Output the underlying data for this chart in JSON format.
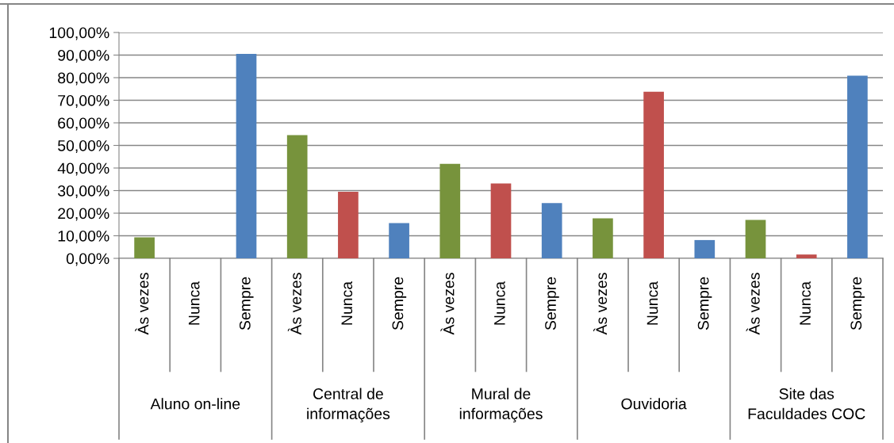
{
  "chart_data": {
    "type": "bar",
    "categories": [
      "Às vezes",
      "Nunca",
      "Sempre",
      "Às vezes",
      "Nunca",
      "Sempre",
      "Às vezes",
      "Nunca",
      "Sempre",
      "Às vezes",
      "Nunca",
      "Sempre",
      "Às vezes",
      "Nunca",
      "Sempre"
    ],
    "values": [
      9.3,
      0,
      90.5,
      54.6,
      29.5,
      15.6,
      41.8,
      33.2,
      24.5,
      17.7,
      73.8,
      8.1,
      17.0,
      1.7,
      80.9
    ],
    "colors": [
      "#77933c",
      "#c0504d",
      "#4f81bd",
      "#77933c",
      "#c0504d",
      "#4f81bd",
      "#77933c",
      "#c0504d",
      "#4f81bd",
      "#77933c",
      "#c0504d",
      "#4f81bd",
      "#77933c",
      "#c0504d",
      "#4f81bd"
    ],
    "annotations": [
      "Aluno on-line",
      "Central de\ninformações",
      "Mural de\ninformações",
      "Ouvidoria",
      "Site das\nFaculdades COC"
    ],
    "ylim": [
      0,
      100
    ],
    "yticks": [
      {
        "value": 0,
        "label": "0,00%"
      },
      {
        "value": 10,
        "label": "10,00%"
      },
      {
        "value": 20,
        "label": "20,00%"
      },
      {
        "value": 30,
        "label": "30,00%"
      },
      {
        "value": 40,
        "label": "40,00%"
      },
      {
        "value": 50,
        "label": "50,00%"
      },
      {
        "value": 60,
        "label": "60,00%"
      },
      {
        "value": 70,
        "label": "70,00%"
      },
      {
        "value": 80,
        "label": "80,00%"
      },
      {
        "value": 90,
        "label": "90,00%"
      },
      {
        "value": 100,
        "label": "100,00%"
      }
    ],
    "grid": "y"
  }
}
